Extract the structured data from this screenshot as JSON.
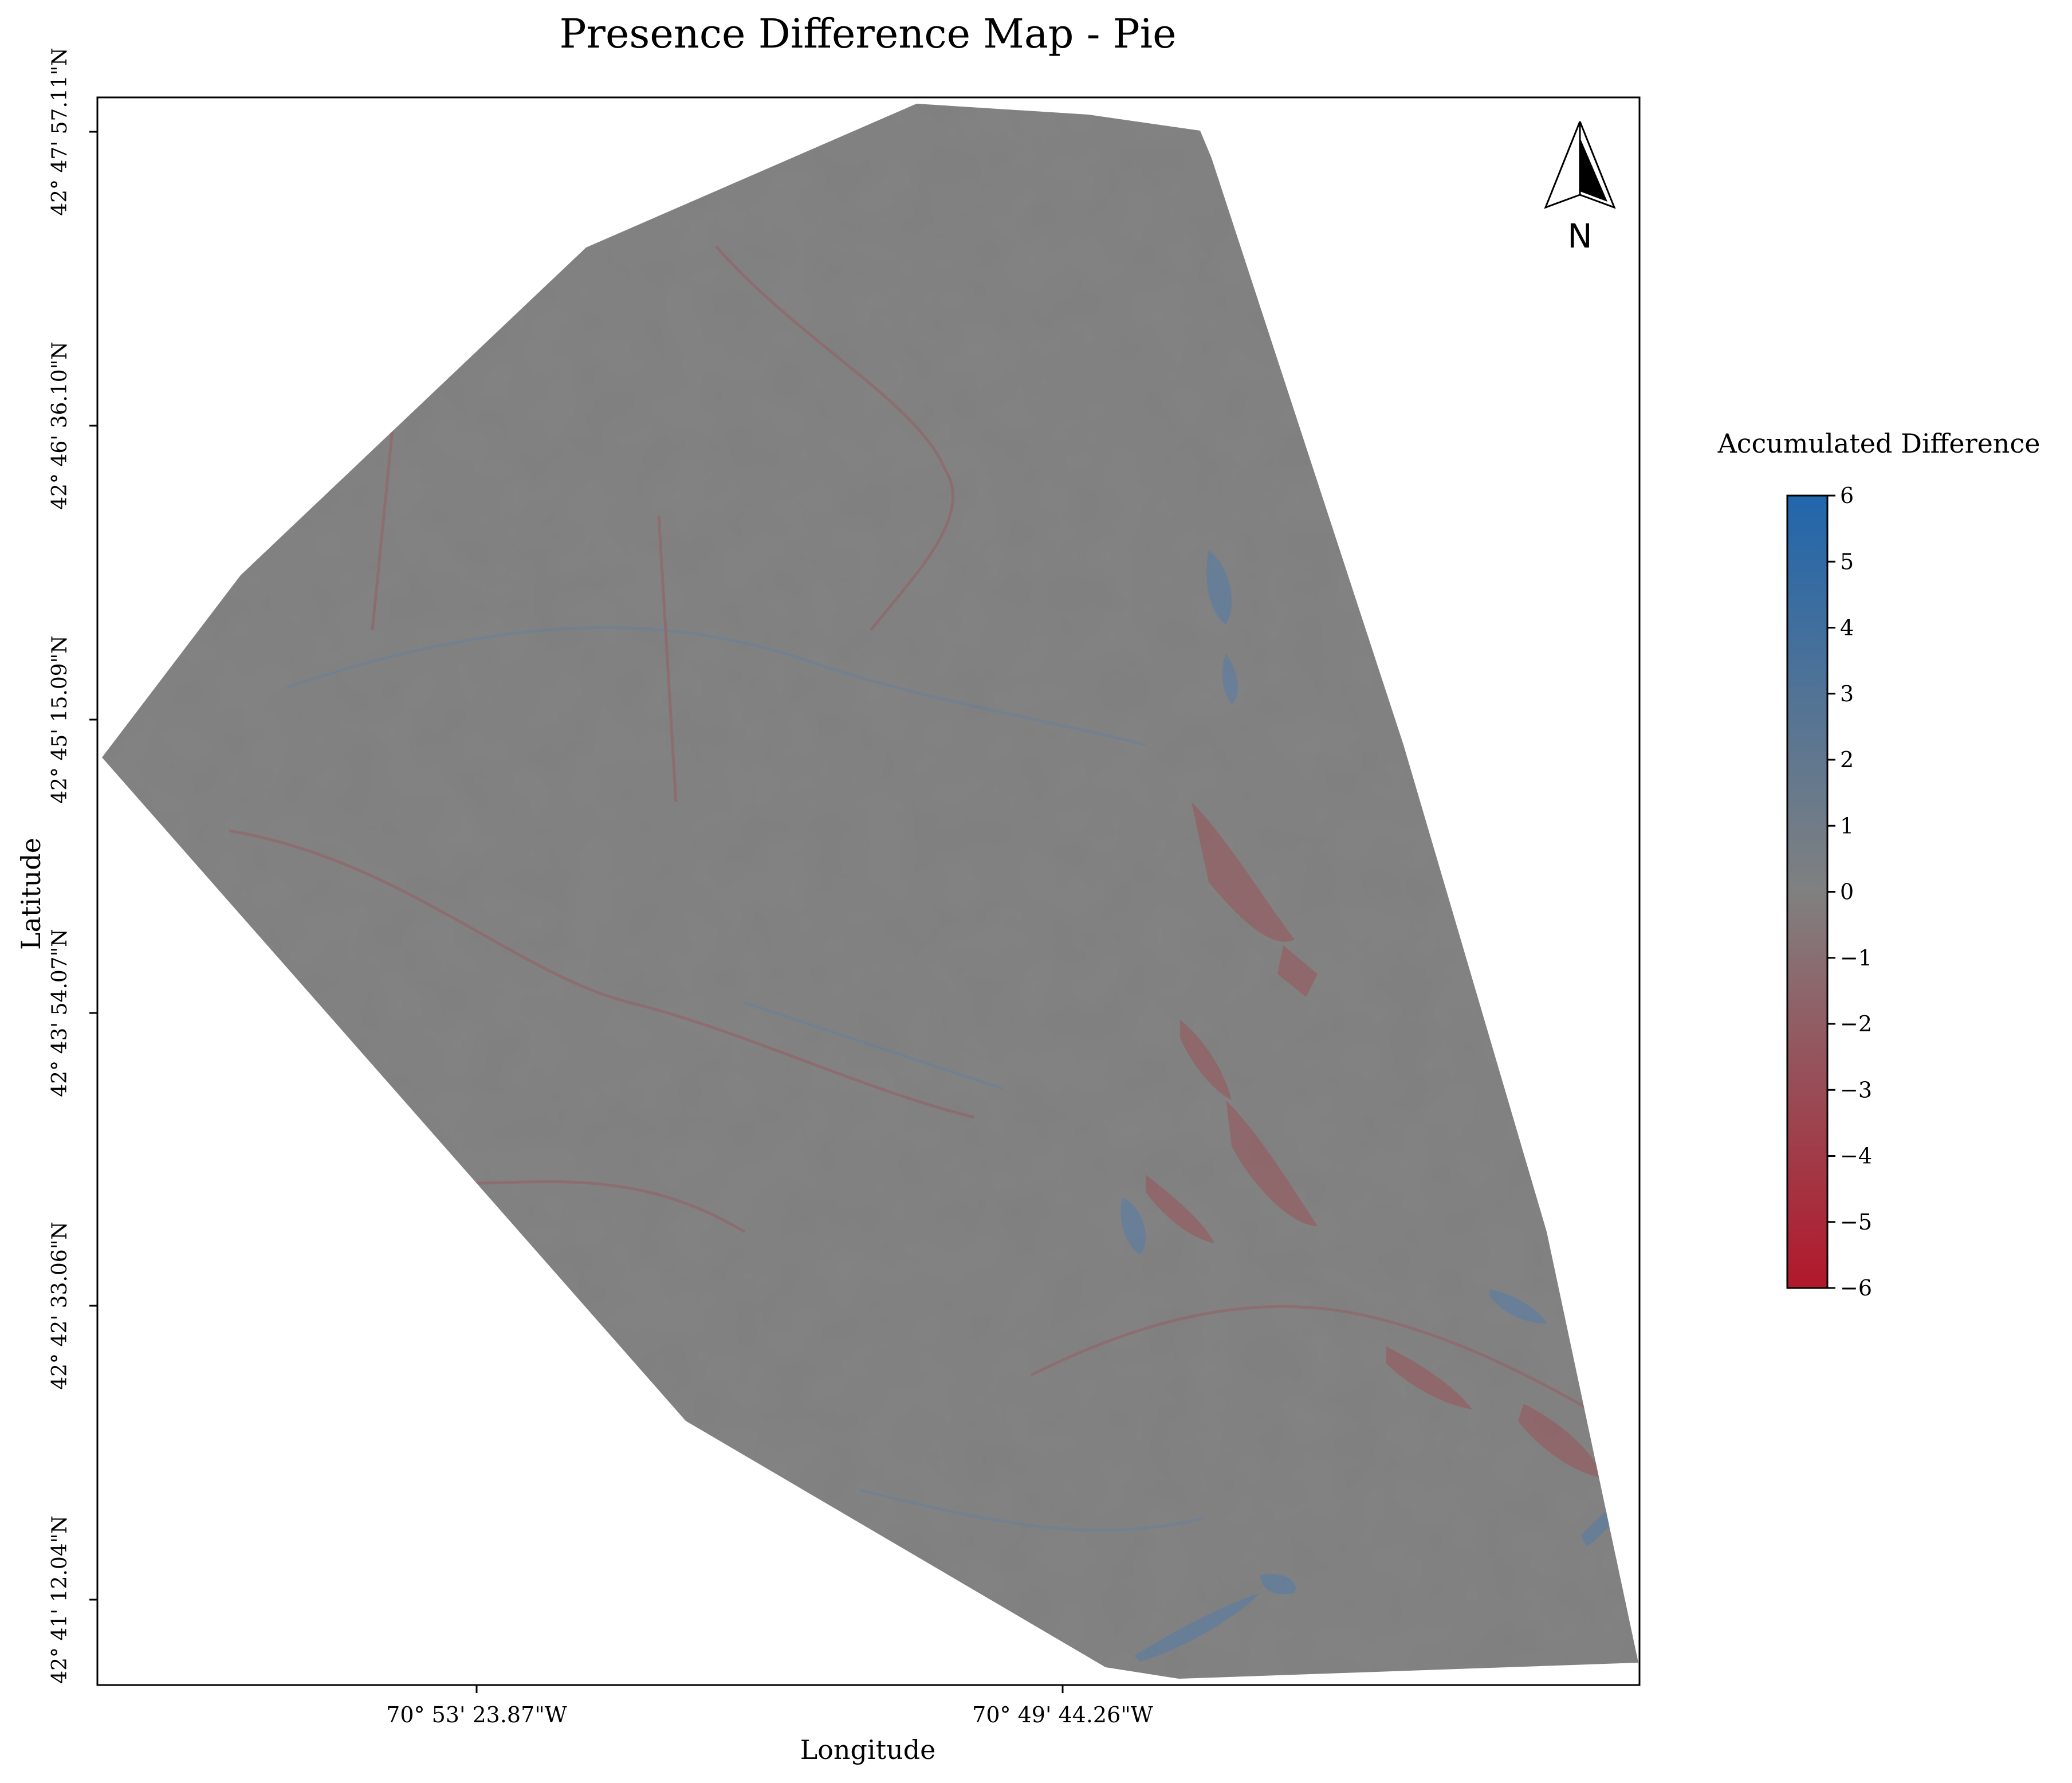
{
  "title": "Presence Difference Map - Pie",
  "axes": {
    "xlabel": "Longitude",
    "ylabel": "Latitude",
    "x_ticks": [
      "70° 53' 23.87\"W",
      "70° 49' 44.26\"W"
    ],
    "y_ticks": [
      "42° 47' 57.11\"N",
      "42° 46' 36.10\"N",
      "42° 45' 15.09\"N",
      "42° 43' 54.07\"N",
      "42° 42' 33.06\"N",
      "42° 41' 12.04\"N"
    ]
  },
  "north_arrow": {
    "label": "N",
    "icon": "north-arrow-icon"
  },
  "colorbar": {
    "title": "Accumulated Difference",
    "ticks": [
      "6",
      "5",
      "4",
      "3",
      "2",
      "1",
      "0",
      "−1",
      "−2",
      "−3",
      "−4",
      "−5",
      "−6"
    ],
    "min": -6,
    "max": 6,
    "colors": {
      "high": "#2166ac",
      "mid": "#808080",
      "low": "#b2182b"
    }
  },
  "map": {
    "fill_color": "#7f7f7f"
  }
}
